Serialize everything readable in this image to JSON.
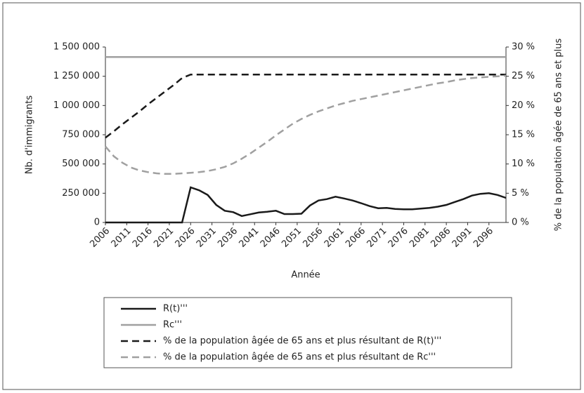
{
  "chart_data": {
    "type": "line",
    "xlabel": "Année",
    "ylabel": "Nb. d'immigrants",
    "y2label": "% de la population âgée de 65 ans et plus",
    "x": [
      2006,
      2008,
      2010,
      2012,
      2014,
      2016,
      2018,
      2020,
      2022,
      2024,
      2026,
      2028,
      2030,
      2032,
      2034,
      2036,
      2038,
      2040,
      2042,
      2044,
      2046,
      2048,
      2050,
      2052,
      2054,
      2056,
      2058,
      2060,
      2062,
      2064,
      2066,
      2068,
      2070,
      2072,
      2074,
      2076,
      2078,
      2080,
      2082,
      2084,
      2086,
      2088,
      2090,
      2092,
      2094,
      2096,
      2098,
      2100
    ],
    "xlim": [
      2006,
      2100
    ],
    "xticks": [
      2006,
      2011,
      2016,
      2021,
      2026,
      2031,
      2036,
      2041,
      2046,
      2051,
      2056,
      2061,
      2066,
      2071,
      2076,
      2081,
      2086,
      2091,
      2096
    ],
    "ylim": [
      0,
      1500000
    ],
    "yticks": [
      0,
      {
        "value": 250000,
        "label": "250 000"
      },
      {
        "value": 500000,
        "label": "500 000"
      },
      {
        "value": 750000,
        "label": "750 000"
      },
      {
        "value": 1000000,
        "label": "1 000 000"
      },
      {
        "value": 1250000,
        "label": "1 250 000"
      },
      {
        "value": 1500000,
        "label": "1 500 000"
      }
    ],
    "y2lim": [
      0,
      30
    ],
    "y2ticks": [
      {
        "value": 0,
        "label": "0 %"
      },
      {
        "value": 5,
        "label": "5 %"
      },
      {
        "value": 10,
        "label": "10 %"
      },
      {
        "value": 15,
        "label": "15 %"
      },
      {
        "value": 20,
        "label": "20 %"
      },
      {
        "value": 25,
        "label": "25 %"
      },
      {
        "value": 30,
        "label": "30 %"
      }
    ],
    "grid": false,
    "series": [
      {
        "name": "R(t)'''",
        "color": "#1a1a1a",
        "line_style": "solid",
        "values": [
          0,
          0,
          0,
          0,
          0,
          0,
          0,
          0,
          0,
          0,
          300000,
          275000,
          235000,
          150000,
          100000,
          88000,
          55000,
          70000,
          85000,
          92000,
          100000,
          72000,
          72000,
          75000,
          145000,
          188000,
          200000,
          220000,
          205000,
          188000,
          165000,
          140000,
          122000,
          125000,
          115000,
          112000,
          113000,
          118000,
          125000,
          135000,
          150000,
          175000,
          200000,
          230000,
          245000,
          250000,
          235000,
          210000
        ]
      },
      {
        "name": "Rc'''",
        "color": "#a0a0a0",
        "line_style": "solid",
        "values": [
          1415000,
          1415000,
          1415000,
          1415000,
          1415000,
          1415000,
          1415000,
          1415000,
          1415000,
          1415000,
          1415000,
          1415000,
          1415000,
          1415000,
          1415000,
          1415000,
          1415000,
          1415000,
          1415000,
          1415000,
          1415000,
          1415000,
          1415000,
          1415000,
          1415000,
          1415000,
          1415000,
          1415000,
          1415000,
          1415000,
          1415000,
          1415000,
          1415000,
          1415000,
          1415000,
          1415000,
          1415000,
          1415000,
          1415000,
          1415000,
          1415000,
          1415000,
          1415000,
          1415000,
          1415000,
          1415000,
          1415000,
          1415000
        ]
      },
      {
        "name": "% de la population âgée de 65 ans et plus résultant de R(t)'''",
        "color": "#1a1a1a",
        "line_style": "dashed",
        "axis": "y2",
        "values": [
          14.5,
          15.6,
          16.8,
          17.9,
          19.0,
          20.2,
          21.3,
          22.4,
          23.5,
          24.7,
          25.3,
          25.3,
          25.3,
          25.3,
          25.3,
          25.3,
          25.3,
          25.3,
          25.3,
          25.3,
          25.3,
          25.3,
          25.3,
          25.3,
          25.3,
          25.3,
          25.3,
          25.3,
          25.3,
          25.3,
          25.3,
          25.3,
          25.3,
          25.3,
          25.3,
          25.3,
          25.3,
          25.3,
          25.3,
          25.3,
          25.3,
          25.3,
          25.3,
          25.3,
          25.3,
          25.3,
          25.3,
          25.3
        ]
      },
      {
        "name": "% de la population âgée de 65 ans et plus résultant de Rc'''",
        "color": "#a0a0a0",
        "line_style": "dashed",
        "axis": "y2",
        "values": [
          13,
          11.3,
          10.2,
          9.4,
          8.9,
          8.6,
          8.4,
          8.3,
          8.3,
          8.4,
          8.5,
          8.6,
          8.8,
          9.1,
          9.5,
          10.1,
          10.9,
          11.8,
          12.8,
          13.8,
          14.9,
          15.9,
          16.9,
          17.7,
          18.4,
          19.0,
          19.5,
          20.0,
          20.4,
          20.8,
          21.1,
          21.4,
          21.7,
          22.0,
          22.3,
          22.6,
          22.9,
          23.2,
          23.5,
          23.8,
          24.0,
          24.3,
          24.5,
          24.7,
          24.8,
          24.9,
          25.0,
          25.1
        ]
      }
    ]
  }
}
